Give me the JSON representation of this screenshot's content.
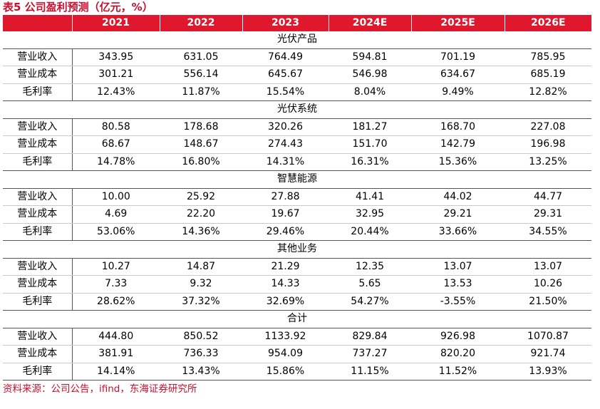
{
  "title": "表5  公司盈利预测（亿元，%）",
  "header": {
    "corner": "",
    "years": [
      "2021",
      "2022",
      "2023",
      "2024E",
      "2025E",
      "2026E"
    ]
  },
  "sections": [
    {
      "name": "光伏产品",
      "rows": [
        {
          "label": "营业收入",
          "values": [
            "343.95",
            "631.05",
            "764.49",
            "594.81",
            "701.19",
            "785.95"
          ]
        },
        {
          "label": "营业成本",
          "values": [
            "301.21",
            "556.14",
            "645.67",
            "546.98",
            "634.67",
            "685.19"
          ]
        },
        {
          "label": "毛利率",
          "values": [
            "12.43%",
            "11.87%",
            "15.54%",
            "8.04%",
            "9.49%",
            "12.82%"
          ]
        }
      ]
    },
    {
      "name": "光伏系统",
      "rows": [
        {
          "label": "营业收入",
          "values": [
            "80.58",
            "178.68",
            "320.26",
            "181.27",
            "168.70",
            "227.08"
          ]
        },
        {
          "label": "营业成本",
          "values": [
            "68.67",
            "148.67",
            "274.43",
            "151.70",
            "142.79",
            "196.98"
          ]
        },
        {
          "label": "毛利率",
          "values": [
            "14.78%",
            "16.80%",
            "14.31%",
            "16.31%",
            "15.36%",
            "13.25%"
          ]
        }
      ]
    },
    {
      "name": "智慧能源",
      "rows": [
        {
          "label": "营业收入",
          "values": [
            "10.00",
            "25.92",
            "27.88",
            "41.41",
            "44.02",
            "44.77"
          ]
        },
        {
          "label": "营业成本",
          "values": [
            "4.69",
            "22.20",
            "19.67",
            "32.95",
            "29.21",
            "29.31"
          ]
        },
        {
          "label": "毛利率",
          "values": [
            "53.06%",
            "14.36%",
            "29.46%",
            "20.44%",
            "33.66%",
            "34.55%"
          ]
        }
      ]
    },
    {
      "name": "其他业务",
      "rows": [
        {
          "label": "营业收入",
          "values": [
            "10.27",
            "14.87",
            "21.29",
            "12.35",
            "13.07",
            "13.07"
          ]
        },
        {
          "label": "营业成本",
          "values": [
            "7.33",
            "9.32",
            "14.33",
            "5.65",
            "13.53",
            "10.26"
          ]
        },
        {
          "label": "毛利率",
          "values": [
            "28.62%",
            "37.32%",
            "32.69%",
            "54.27%",
            "-3.55%",
            "21.50%"
          ]
        }
      ]
    },
    {
      "name": "合计",
      "rows": [
        {
          "label": "营业收入",
          "values": [
            "444.80",
            "850.52",
            "1133.92",
            "829.84",
            "926.98",
            "1070.87"
          ]
        },
        {
          "label": "营业成本",
          "values": [
            "381.91",
            "736.33",
            "954.09",
            "737.27",
            "820.20",
            "921.74"
          ]
        },
        {
          "label": "毛利率",
          "values": [
            "14.14%",
            "13.43%",
            "15.86%",
            "11.15%",
            "11.52%",
            "13.93%"
          ]
        }
      ]
    }
  ],
  "source": "资料来源：公司公告，ifind，东海证券研究所",
  "colors": {
    "accent": "#e0182e",
    "title_text": "#c8102e"
  }
}
